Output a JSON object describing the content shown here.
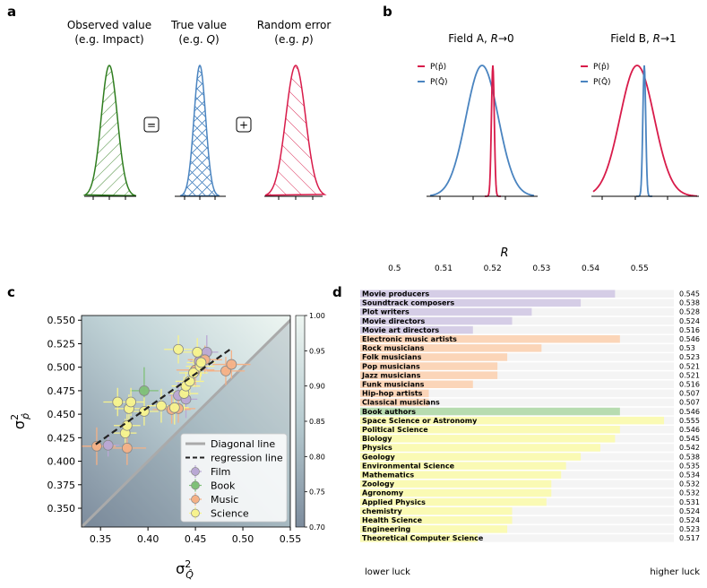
{
  "panels": {
    "a": "a",
    "b": "b",
    "c": "c",
    "d": "d"
  },
  "panel_a": {
    "dist1": {
      "title_line1": "Observed value",
      "title_line2": "(e.g. Impact)",
      "color": "#2e7d1e"
    },
    "dist2": {
      "title_line1": "True value",
      "title_line2_pre": "(e.g. ",
      "title_line2_sym": "Q",
      "title_line2_post": ")",
      "color": "#4a84c0"
    },
    "dist3": {
      "title_line1": "Random error",
      "title_line2_pre": "(e.g. ",
      "title_line2_sym": "p",
      "title_line2_post": ")",
      "color": "#d81b4a"
    },
    "op1": "=",
    "op2": "+"
  },
  "panel_b": {
    "fieldA": {
      "title": "Field A, R→0",
      "sym": "R",
      "prefix": "Field A, ",
      "suffix": "→0"
    },
    "fieldB": {
      "title": "Field B, R→1",
      "sym": "R",
      "prefix": "Field B, ",
      "suffix": "→1"
    },
    "legend_p": "P(p̂)",
    "legend_q": "P(Q̂)",
    "color_p": "#d81b4a",
    "color_q": "#4a84c0"
  },
  "chart_data": [
    {
      "type": "scatter",
      "panel": "c",
      "xlabel": "σ²_Q̂",
      "ylabel": "σ²_p̂",
      "xlim": [
        0.33,
        0.55
      ],
      "ylim": [
        0.33,
        0.555
      ],
      "xticks": [
        0.35,
        0.4,
        0.45,
        0.5,
        0.55
      ],
      "xtick_labels": [
        "0.35",
        "0.40",
        "0.45",
        "0.50",
        "0.55"
      ],
      "yticks": [
        0.35,
        0.375,
        0.4,
        0.425,
        0.45,
        0.475,
        0.5,
        0.525,
        0.55
      ],
      "ytick_labels": [
        "0.350",
        "0.375",
        "0.400",
        "0.425",
        "0.450",
        "0.475",
        "0.500",
        "0.525",
        "0.550"
      ],
      "colorbar": {
        "min": 0.7,
        "max": 1.0,
        "ticks": [
          "1.00",
          "0.95",
          "0.90",
          "0.85",
          "0.80",
          "0.75",
          "0.70"
        ]
      },
      "legend": [
        {
          "label": "Diagonal line",
          "kind": "line",
          "color": "#aaaaaa"
        },
        {
          "label": "regression line",
          "kind": "dash",
          "color": "#222222"
        },
        {
          "label": "Film",
          "kind": "marker",
          "color": "#b9a8d4"
        },
        {
          "label": "Book",
          "kind": "marker",
          "color": "#7fc078"
        },
        {
          "label": "Music",
          "kind": "marker",
          "color": "#f5b186"
        },
        {
          "label": "Science",
          "kind": "marker",
          "color": "#f7f38e"
        }
      ],
      "regression": {
        "x": [
          0.345,
          0.488
        ],
        "y": [
          0.418,
          0.52
        ]
      },
      "series": [
        {
          "name": "Film",
          "color": "#b9a8d4",
          "points": [
            {
              "x": 0.358,
              "y": 0.417,
              "xerr": 0.012,
              "yerr": 0.012
            },
            {
              "x": 0.432,
              "y": 0.47,
              "xerr": 0.01,
              "yerr": 0.015
            },
            {
              "x": 0.44,
              "y": 0.466,
              "xerr": 0.012,
              "yerr": 0.02
            },
            {
              "x": 0.454,
              "y": 0.506,
              "xerr": 0.01,
              "yerr": 0.015
            },
            {
              "x": 0.462,
              "y": 0.516,
              "xerr": 0.012,
              "yerr": 0.018
            }
          ]
        },
        {
          "name": "Book",
          "color": "#7fc078",
          "points": [
            {
              "x": 0.396,
              "y": 0.475,
              "xerr": 0.015,
              "yerr": 0.025
            }
          ]
        },
        {
          "name": "Music",
          "color": "#f5b186",
          "points": [
            {
              "x": 0.346,
              "y": 0.416,
              "xerr": 0.02,
              "yerr": 0.02
            },
            {
              "x": 0.378,
              "y": 0.414,
              "xerr": 0.02,
              "yerr": 0.018
            },
            {
              "x": 0.425,
              "y": 0.455,
              "xerr": 0.02,
              "yerr": 0.015
            },
            {
              "x": 0.432,
              "y": 0.456,
              "xerr": 0.018,
              "yerr": 0.015
            },
            {
              "x": 0.45,
              "y": 0.497,
              "xerr": 0.02,
              "yerr": 0.018
            },
            {
              "x": 0.46,
              "y": 0.508,
              "xerr": 0.018,
              "yerr": 0.015
            },
            {
              "x": 0.482,
              "y": 0.496,
              "xerr": 0.02,
              "yerr": 0.015
            },
            {
              "x": 0.488,
              "y": 0.503,
              "xerr": 0.02,
              "yerr": 0.015
            }
          ]
        },
        {
          "name": "Science",
          "color": "#f7f38e",
          "points": [
            {
              "x": 0.368,
              "y": 0.463,
              "xerr": 0.015,
              "yerr": 0.015
            },
            {
              "x": 0.376,
              "y": 0.43,
              "xerr": 0.012,
              "yerr": 0.015
            },
            {
              "x": 0.378,
              "y": 0.438,
              "xerr": 0.014,
              "yerr": 0.012
            },
            {
              "x": 0.38,
              "y": 0.456,
              "xerr": 0.015,
              "yerr": 0.015
            },
            {
              "x": 0.382,
              "y": 0.463,
              "xerr": 0.014,
              "yerr": 0.015
            },
            {
              "x": 0.396,
              "y": 0.453,
              "xerr": 0.015,
              "yerr": 0.015
            },
            {
              "x": 0.414,
              "y": 0.459,
              "xerr": 0.015,
              "yerr": 0.018
            },
            {
              "x": 0.428,
              "y": 0.457,
              "xerr": 0.015,
              "yerr": 0.018
            },
            {
              "x": 0.432,
              "y": 0.519,
              "xerr": 0.015,
              "yerr": 0.015
            },
            {
              "x": 0.438,
              "y": 0.472,
              "xerr": 0.015,
              "yerr": 0.018
            },
            {
              "x": 0.44,
              "y": 0.48,
              "xerr": 0.015,
              "yerr": 0.015
            },
            {
              "x": 0.444,
              "y": 0.485,
              "xerr": 0.015,
              "yerr": 0.015
            },
            {
              "x": 0.448,
              "y": 0.494,
              "xerr": 0.015,
              "yerr": 0.015
            },
            {
              "x": 0.452,
              "y": 0.516,
              "xerr": 0.015,
              "yerr": 0.015
            },
            {
              "x": 0.455,
              "y": 0.501,
              "xerr": 0.015,
              "yerr": 0.015
            },
            {
              "x": 0.456,
              "y": 0.505,
              "xerr": 0.015,
              "yerr": 0.015
            }
          ]
        }
      ]
    },
    {
      "type": "bar",
      "panel": "d",
      "orientation": "horizontal",
      "xlabel": "R",
      "xlim": [
        0.493,
        0.557
      ],
      "xticks": [
        0.5,
        0.51,
        0.52,
        0.53,
        0.54,
        0.55
      ],
      "xtick_labels": [
        "0.5",
        "0.51",
        "0.52",
        "0.53",
        "0.54",
        "0.55"
      ],
      "footer_left": "lower luck",
      "footer_right": "higher luck",
      "group_colors": {
        "Film": "#d5cde6",
        "Music": "#fbd5b8",
        "Book": "#b7dcb0",
        "Science": "#fafab4"
      },
      "bars": [
        {
          "label": "Movie producers",
          "value": 0.545,
          "display": "0.545",
          "group": "Film"
        },
        {
          "label": "Soundtrack composers",
          "value": 0.538,
          "display": "0.538",
          "group": "Film"
        },
        {
          "label": "Plot writers",
          "value": 0.528,
          "display": "0.528",
          "group": "Film"
        },
        {
          "label": "Movie directors",
          "value": 0.524,
          "display": "0.524",
          "group": "Film"
        },
        {
          "label": "Movie art directors",
          "value": 0.516,
          "display": "0.516",
          "group": "Film"
        },
        {
          "label": "Electronic music artists",
          "value": 0.546,
          "display": "0.546",
          "group": "Music"
        },
        {
          "label": "Rock musicians",
          "value": 0.53,
          "display": "0.53",
          "group": "Music"
        },
        {
          "label": "Folk musicians",
          "value": 0.523,
          "display": "0.523",
          "group": "Music"
        },
        {
          "label": "Pop musicians",
          "value": 0.521,
          "display": "0.521",
          "group": "Music"
        },
        {
          "label": "Jazz musicians",
          "value": 0.521,
          "display": "0.521",
          "group": "Music"
        },
        {
          "label": "Funk musicians",
          "value": 0.516,
          "display": "0.516",
          "group": "Music"
        },
        {
          "label": "Hip-hop artists",
          "value": 0.507,
          "display": "0.507",
          "group": "Music"
        },
        {
          "label": "Classical musicians",
          "value": 0.507,
          "display": "0.507",
          "group": "Music"
        },
        {
          "label": "Book authors",
          "value": 0.546,
          "display": "0.546",
          "group": "Book"
        },
        {
          "label": "Space Science or Astronomy",
          "value": 0.555,
          "display": "0.555",
          "group": "Science"
        },
        {
          "label": "Political Science",
          "value": 0.546,
          "display": "0.546",
          "group": "Science"
        },
        {
          "label": "Biology",
          "value": 0.545,
          "display": "0.545",
          "group": "Science"
        },
        {
          "label": "Physics",
          "value": 0.542,
          "display": "0.542",
          "group": "Science"
        },
        {
          "label": "Geology",
          "value": 0.538,
          "display": "0.538",
          "group": "Science"
        },
        {
          "label": "Environmental Science",
          "value": 0.535,
          "display": "0.535",
          "group": "Science"
        },
        {
          "label": "Mathematics",
          "value": 0.534,
          "display": "0.534",
          "group": "Science"
        },
        {
          "label": "Zoology",
          "value": 0.532,
          "display": "0.532",
          "group": "Science"
        },
        {
          "label": "Agronomy",
          "value": 0.532,
          "display": "0.532",
          "group": "Science"
        },
        {
          "label": "Applied Physics",
          "value": 0.531,
          "display": "0.531",
          "group": "Science"
        },
        {
          "label": "chemistry",
          "value": 0.524,
          "display": "0.524",
          "group": "Science"
        },
        {
          "label": "Health Science",
          "value": 0.524,
          "display": "0.524",
          "group": "Science"
        },
        {
          "label": "Engineering",
          "value": 0.523,
          "display": "0.523",
          "group": "Science"
        },
        {
          "label": "Theoretical Computer Science",
          "value": 0.517,
          "display": "0.517",
          "group": "Science"
        }
      ]
    }
  ]
}
